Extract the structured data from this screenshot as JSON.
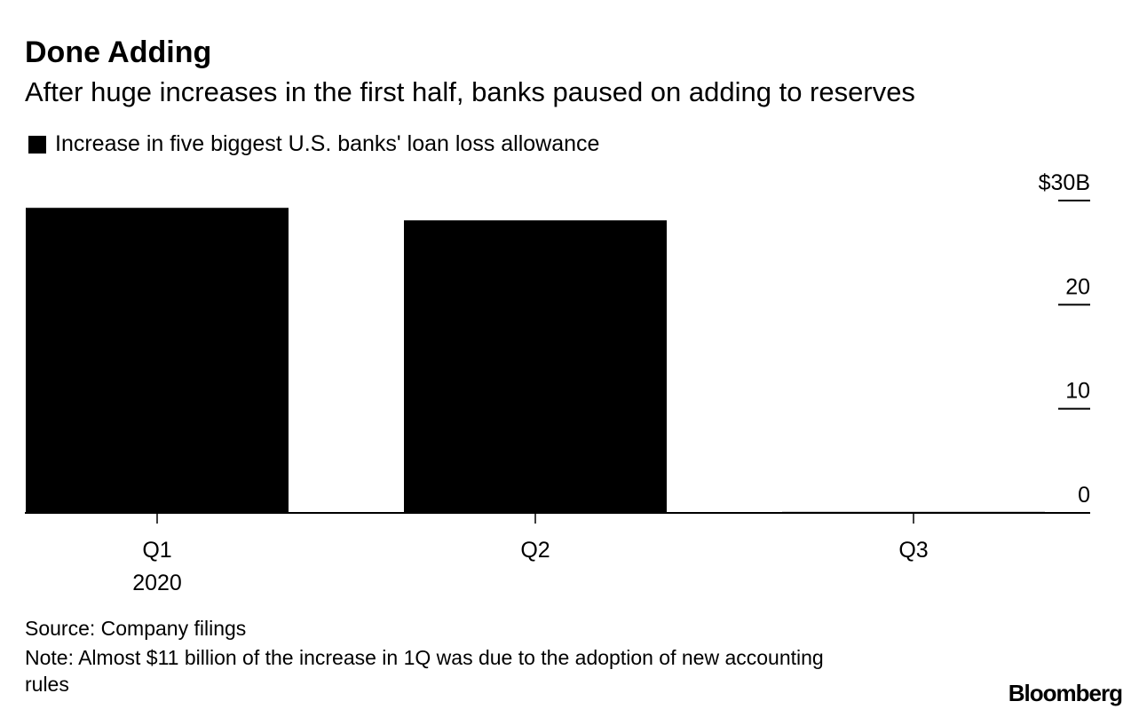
{
  "chart_data": {
    "type": "bar",
    "title": "Done Adding",
    "subtitle": "After huge increases in the first half, banks paused on adding to reserves",
    "categories": [
      "Q1",
      "Q2",
      "Q3"
    ],
    "x_sublabels": [
      "2020",
      null,
      null
    ],
    "series": [
      {
        "name": "Increase in five biggest U.S. banks' loan loss allowance",
        "color": "#000000",
        "values": [
          29.3,
          28.1,
          0.1
        ]
      }
    ],
    "ylim": [
      0,
      30
    ],
    "yticks": [
      0,
      10,
      20,
      {
        "value": 30,
        "label": "$30B"
      }
    ],
    "source": "Source: Company filings",
    "note": "Note: Almost $11 billion of the increase in 1Q was due to the adoption of new accounting rules",
    "brand": "Bloomberg"
  }
}
